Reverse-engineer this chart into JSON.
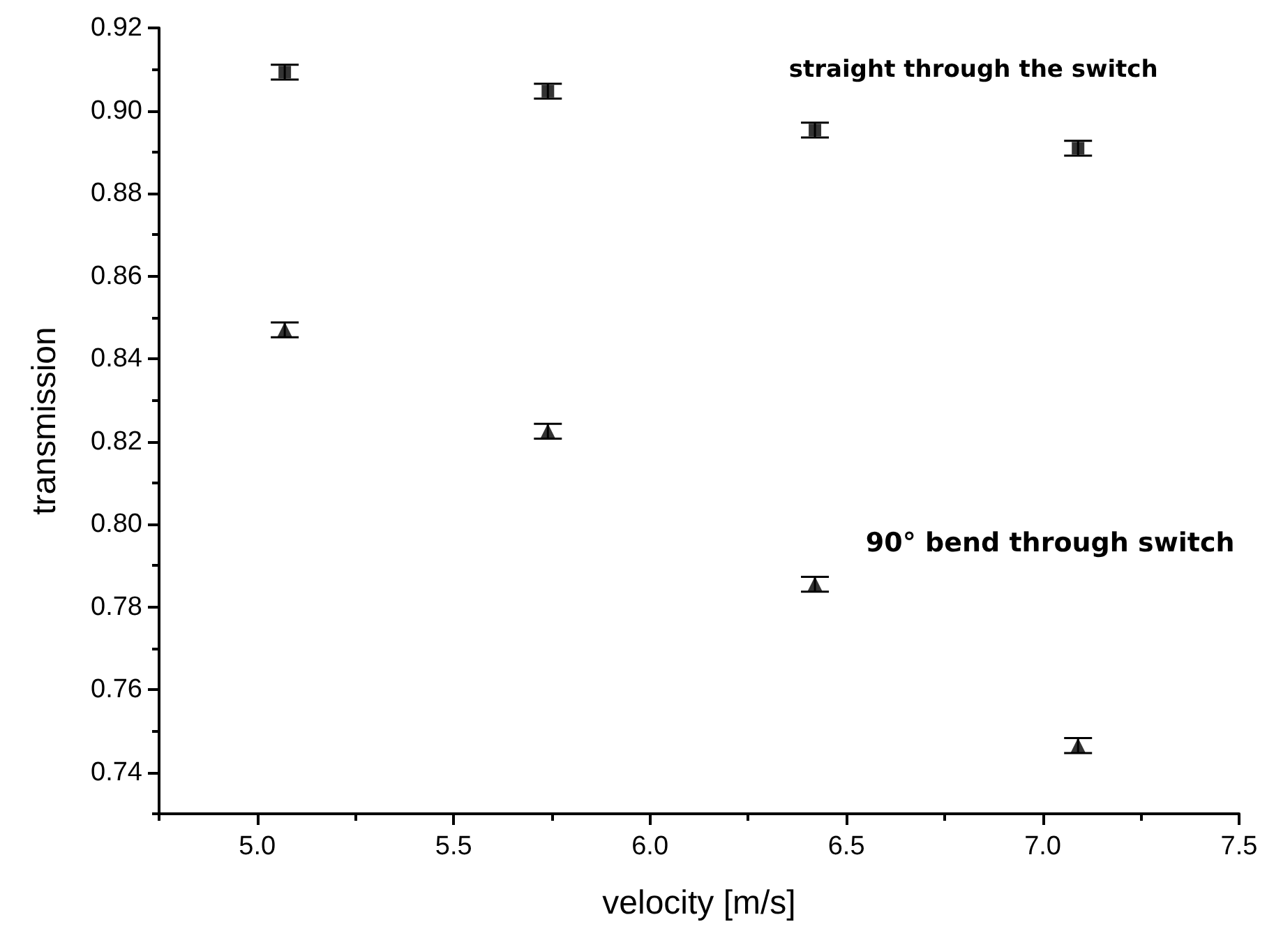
{
  "chart_data": {
    "type": "scatter",
    "xlabel": "velocity [m/s]",
    "ylabel": "transmission",
    "x": [
      5.07,
      5.74,
      6.42,
      7.09
    ],
    "series": [
      {
        "name": "straight through the switch",
        "color": "#000000",
        "marker": "square",
        "values": [
          0.9093,
          0.9047,
          0.8953,
          0.8909
        ],
        "errors": [
          0.0018,
          0.0018,
          0.0018,
          0.0018
        ]
      },
      {
        "name": "90° bend through switch",
        "color": "#000000",
        "marker": "triangle",
        "values": [
          0.847,
          0.8225,
          0.7855,
          0.7465
        ],
        "errors": [
          0.0018,
          0.0018,
          0.0018,
          0.0018
        ]
      }
    ],
    "xlim": [
      4.75,
      7.5
    ],
    "xticks": [
      {
        "value": 5,
        "label": "5.0"
      },
      5.5,
      {
        "value": 6,
        "label": "6.0"
      },
      6.5,
      {
        "value": 7,
        "label": "7.0"
      },
      7.5
    ],
    "ylim": [
      0.73,
      0.92
    ],
    "yticks": [
      0.74,
      0.76,
      0.78,
      {
        "value": 0.8,
        "label": "0.80"
      },
      0.82,
      0.84,
      0.86,
      0.88,
      {
        "value": 0.9,
        "label": "0.90"
      },
      0.92
    ],
    "grid": false,
    "legend": false
  }
}
